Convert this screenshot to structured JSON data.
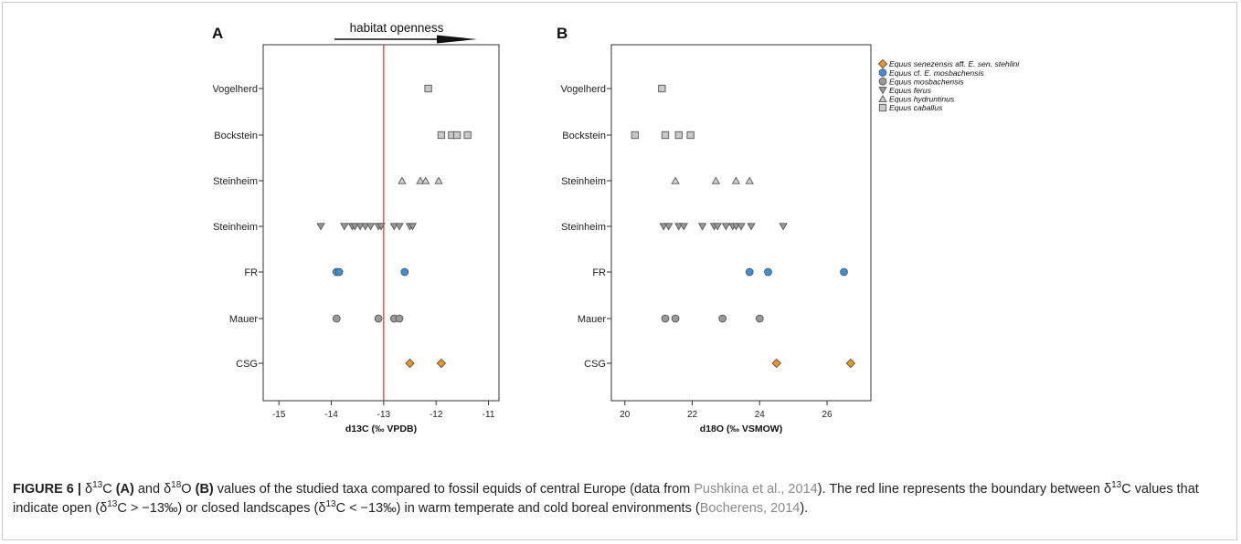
{
  "colors": {
    "senezensis": "#f0941e",
    "cf_mosbachensis": "#3d8fd6",
    "mosbachensis": "#9a9a9a",
    "ferus": "#9a9a9a",
    "hydruntinus": "#cfcfcf",
    "caballus": "#c8c8c8",
    "boundary_line": "#e03a2e"
  },
  "legend": [
    {
      "key": "senezensis",
      "marker": "diamond",
      "italic": "Equus senezensis",
      "rest": " aff. ",
      "italic2": "E. sen. stehlini"
    },
    {
      "key": "cf_mosbachensis",
      "marker": "circle",
      "italic": "Equus",
      "rest": " cf. ",
      "italic2": "E. mosbachensis"
    },
    {
      "key": "mosbachensis",
      "marker": "circle",
      "italic": "Equus mosbachensis",
      "rest": "",
      "italic2": ""
    },
    {
      "key": "ferus",
      "marker": "triangle-down",
      "italic": "Equus ferus",
      "rest": "",
      "italic2": ""
    },
    {
      "key": "hydruntinus",
      "marker": "triangle-up",
      "italic": "Equus hydruntinus",
      "rest": "",
      "italic2": ""
    },
    {
      "key": "caballus",
      "marker": "square",
      "italic": "Equus caballus",
      "rest": "",
      "italic2": ""
    }
  ],
  "chart_data": [
    {
      "panel_label": "A",
      "type": "scatter",
      "xlabel": "d13C (‰ VPDB)",
      "xlim": [
        -15.3,
        -10.8
      ],
      "xticks": [
        -15,
        -14,
        -13,
        -12,
        -11
      ],
      "annotation": "habitat openness",
      "reference_line_x": -13,
      "categories": [
        "Vogelherd",
        "Bockstein",
        "Steinheim",
        "Steinheim",
        "FR",
        "Mauer",
        "CSG"
      ],
      "series": [
        {
          "key": "caballus",
          "points": [
            {
              "site": 0,
              "x": -12.15
            },
            {
              "site": 1,
              "x": -11.9
            },
            {
              "site": 1,
              "x": -11.7
            },
            {
              "site": 1,
              "x": -11.6
            },
            {
              "site": 1,
              "x": -11.4
            }
          ]
        },
        {
          "key": "hydruntinus",
          "points": [
            {
              "site": 2,
              "x": -12.65
            },
            {
              "site": 2,
              "x": -12.3
            },
            {
              "site": 2,
              "x": -12.2
            },
            {
              "site": 2,
              "x": -11.95
            }
          ]
        },
        {
          "key": "ferus",
          "points": [
            {
              "site": 3,
              "x": -14.2
            },
            {
              "site": 3,
              "x": -13.75
            },
            {
              "site": 3,
              "x": -13.6
            },
            {
              "site": 3,
              "x": -13.55
            },
            {
              "site": 3,
              "x": -13.45
            },
            {
              "site": 3,
              "x": -13.35
            },
            {
              "site": 3,
              "x": -13.25
            },
            {
              "site": 3,
              "x": -13.1
            },
            {
              "site": 3,
              "x": -13.05
            },
            {
              "site": 3,
              "x": -12.8
            },
            {
              "site": 3,
              "x": -12.7
            },
            {
              "site": 3,
              "x": -12.5
            },
            {
              "site": 3,
              "x": -12.45
            }
          ]
        },
        {
          "key": "cf_mosbachensis",
          "points": [
            {
              "site": 4,
              "x": -13.9
            },
            {
              "site": 4,
              "x": -13.85
            },
            {
              "site": 4,
              "x": -12.6
            }
          ]
        },
        {
          "key": "mosbachensis",
          "points": [
            {
              "site": 5,
              "x": -13.9
            },
            {
              "site": 5,
              "x": -13.1
            },
            {
              "site": 5,
              "x": -12.8
            },
            {
              "site": 5,
              "x": -12.7
            }
          ]
        },
        {
          "key": "senezensis",
          "points": [
            {
              "site": 6,
              "x": -12.5
            },
            {
              "site": 6,
              "x": -11.9
            }
          ]
        }
      ]
    },
    {
      "panel_label": "B",
      "type": "scatter",
      "xlabel": "d18O (‰ VSMOW)",
      "xlim": [
        19.6,
        27.3
      ],
      "xticks": [
        20,
        22,
        24,
        26
      ],
      "categories": [
        "Vogelherd",
        "Bockstein",
        "Steinheim",
        "Steinheim",
        "FR",
        "Mauer",
        "CSG"
      ],
      "series": [
        {
          "key": "caballus",
          "points": [
            {
              "site": 0,
              "x": 21.1
            },
            {
              "site": 1,
              "x": 20.3
            },
            {
              "site": 1,
              "x": 21.2
            },
            {
              "site": 1,
              "x": 21.6
            },
            {
              "site": 1,
              "x": 21.95
            }
          ]
        },
        {
          "key": "hydruntinus",
          "points": [
            {
              "site": 2,
              "x": 21.5
            },
            {
              "site": 2,
              "x": 22.7
            },
            {
              "site": 2,
              "x": 23.3
            },
            {
              "site": 2,
              "x": 23.7
            }
          ]
        },
        {
          "key": "ferus",
          "points": [
            {
              "site": 3,
              "x": 21.15
            },
            {
              "site": 3,
              "x": 21.3
            },
            {
              "site": 3,
              "x": 21.6
            },
            {
              "site": 3,
              "x": 21.75
            },
            {
              "site": 3,
              "x": 22.3
            },
            {
              "site": 3,
              "x": 22.65
            },
            {
              "site": 3,
              "x": 22.75
            },
            {
              "site": 3,
              "x": 23.0
            },
            {
              "site": 3,
              "x": 23.2
            },
            {
              "site": 3,
              "x": 23.3
            },
            {
              "site": 3,
              "x": 23.45
            },
            {
              "site": 3,
              "x": 23.75
            },
            {
              "site": 3,
              "x": 24.7
            }
          ]
        },
        {
          "key": "cf_mosbachensis",
          "points": [
            {
              "site": 4,
              "x": 23.7
            },
            {
              "site": 4,
              "x": 24.25
            },
            {
              "site": 4,
              "x": 26.5
            }
          ]
        },
        {
          "key": "mosbachensis",
          "points": [
            {
              "site": 5,
              "x": 21.2
            },
            {
              "site": 5,
              "x": 21.5
            },
            {
              "site": 5,
              "x": 22.9
            },
            {
              "site": 5,
              "x": 24.0
            }
          ]
        },
        {
          "key": "senezensis",
          "points": [
            {
              "site": 6,
              "x": 24.5
            },
            {
              "site": 6,
              "x": 26.7
            }
          ]
        }
      ]
    }
  ],
  "caption": {
    "label": "FIGURE 6 |",
    "p1": " δ",
    "sup1": "13",
    "p2": "C ",
    "bA": "(A)",
    "p3": " and δ",
    "sup2": "18",
    "p4": "O ",
    "bB": "(B)",
    "p5": " values of the studied taxa compared to fossil equids of central Europe (data from ",
    "cite1": "Pushkina et al., 2014",
    "p6": "). The red line represents the boundary between δ",
    "sup3": "13",
    "p7": "C values that indicate open (δ",
    "sup4": "13",
    "p8": "C > −13‰) or closed landscapes (δ",
    "sup5": "13",
    "p9": "C < −13‰) in warm temperate and cold boreal environments (",
    "cite2": "Bocherens, 2014",
    "p10": ")."
  }
}
